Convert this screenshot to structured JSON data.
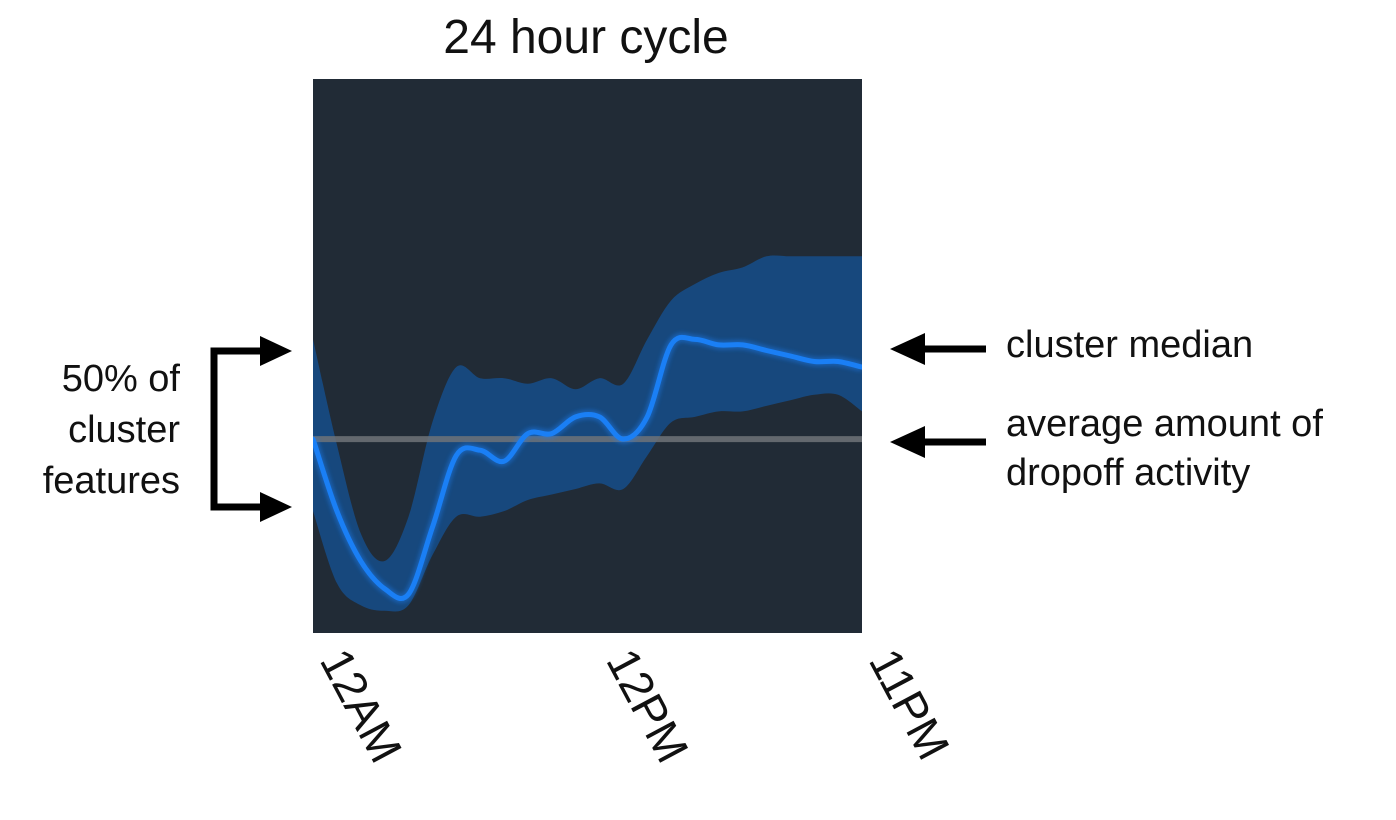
{
  "chart_data": {
    "type": "line",
    "title": "24 hour cycle",
    "xlabel": "",
    "ylabel": "",
    "x_tick_labels": [
      "12AM",
      "12PM",
      "11PM"
    ],
    "x_ticks": [
      0,
      12,
      23
    ],
    "xlim": [
      0,
      23
    ],
    "ylim": [
      0,
      1
    ],
    "grid": false,
    "background_color": "#212b36",
    "median_color": "#1a7ff5",
    "band_color": "#174a82",
    "reference_color": "#6f7378",
    "x": [
      0,
      1,
      2,
      3,
      4,
      5,
      6,
      7,
      8,
      9,
      10,
      11,
      12,
      13,
      14,
      15,
      16,
      17,
      18,
      19,
      20,
      21,
      22,
      23
    ],
    "series": [
      {
        "name": "cluster median",
        "role": "median",
        "values": [
          0.35,
          0.22,
          0.13,
          0.08,
          0.07,
          0.19,
          0.32,
          0.33,
          0.31,
          0.36,
          0.36,
          0.39,
          0.39,
          0.35,
          0.39,
          0.52,
          0.53,
          0.52,
          0.52,
          0.51,
          0.5,
          0.49,
          0.49,
          0.48
        ]
      },
      {
        "name": "50% of cluster features",
        "role": "band",
        "upper": [
          0.53,
          0.34,
          0.18,
          0.13,
          0.21,
          0.38,
          0.48,
          0.46,
          0.46,
          0.45,
          0.46,
          0.44,
          0.46,
          0.45,
          0.53,
          0.6,
          0.63,
          0.65,
          0.66,
          0.68,
          0.68,
          0.68,
          0.68,
          0.68
        ],
        "lower": [
          0.22,
          0.09,
          0.05,
          0.04,
          0.05,
          0.14,
          0.21,
          0.21,
          0.22,
          0.24,
          0.25,
          0.26,
          0.27,
          0.26,
          0.32,
          0.38,
          0.39,
          0.4,
          0.4,
          0.41,
          0.42,
          0.43,
          0.43,
          0.4
        ]
      },
      {
        "name": "average amount of dropoff activity",
        "role": "reference",
        "values": [
          0.35,
          0.35,
          0.35,
          0.35,
          0.35,
          0.35,
          0.35,
          0.35,
          0.35,
          0.35,
          0.35,
          0.35,
          0.35,
          0.35,
          0.35,
          0.35,
          0.35,
          0.35,
          0.35,
          0.35,
          0.35,
          0.35,
          0.35,
          0.35
        ]
      }
    ]
  },
  "annotations": {
    "band_label": [
      "50% of",
      "cluster",
      "features"
    ],
    "median_label": "cluster median",
    "reference_label": [
      "average amount of",
      "dropoff activity"
    ]
  },
  "icons": {
    "bracket": "bracket-arrows-icon",
    "median_arrow": "left-arrow-icon",
    "reference_arrow": "left-arrow-icon"
  }
}
